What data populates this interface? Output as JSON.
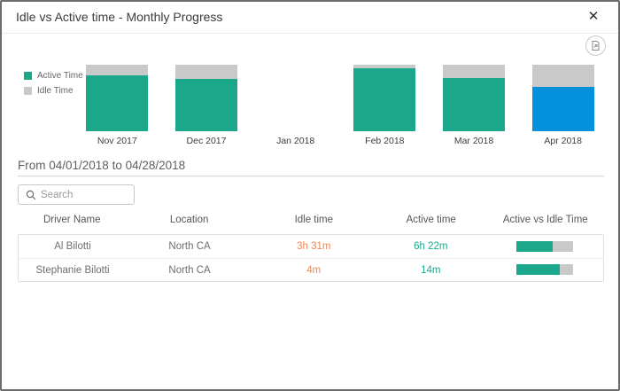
{
  "dialog": {
    "title": "Idle vs Active time - Monthly Progress",
    "close_glyph": "✕"
  },
  "icons": {
    "close": "close-icon",
    "export": "export-report-icon",
    "search": "search-icon"
  },
  "colors": {
    "active": "#1AA78A",
    "idle": "#C9C9C9",
    "selected": "#0590DC",
    "idle_text": "#E8885A",
    "active_text": "#1FA78C"
  },
  "chart_data": {
    "type": "bar",
    "stacked": true,
    "unit": "percent_of_month_total",
    "categories": [
      "Nov 2017",
      "Dec 2017",
      "Jan 2018",
      "Feb 2018",
      "Mar 2018",
      "Apr 2018"
    ],
    "series": [
      {
        "name": "Active Time",
        "values": [
          84,
          79,
          null,
          95,
          80,
          67
        ]
      },
      {
        "name": "Idle Time",
        "values": [
          16,
          21,
          null,
          5,
          20,
          33
        ]
      }
    ],
    "highlighted_category": "Apr 2018",
    "legend_position": "left",
    "ylim": [
      0,
      100
    ],
    "grid": false,
    "title": "Idle vs Active time - Monthly Progress"
  },
  "filter": {
    "range_label": "From 04/01/2018 to 04/28/2018"
  },
  "search": {
    "placeholder": "Search",
    "value": ""
  },
  "table": {
    "columns": [
      "Driver Name",
      "Location",
      "Idle time",
      "Active time",
      "Active vs Idle Time"
    ],
    "rows": [
      {
        "driver": "Al Bilotti",
        "location": "North CA",
        "idle_time": "3h 31m",
        "active_time": "6h 22m",
        "active_ratio_pct": 64
      },
      {
        "driver": "Stephanie Bilotti",
        "location": "North CA",
        "idle_time": "4m",
        "active_time": "14m",
        "active_ratio_pct": 77
      }
    ]
  }
}
